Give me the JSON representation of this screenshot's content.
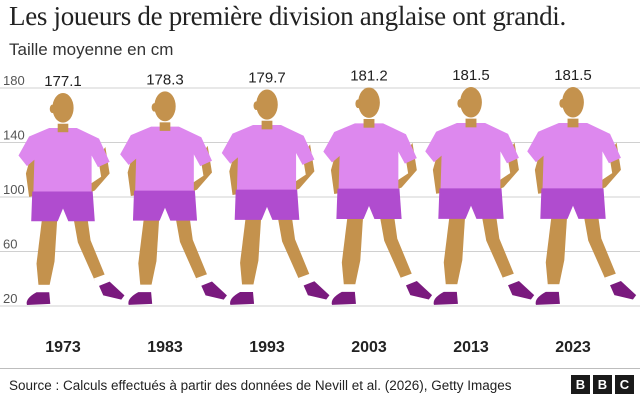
{
  "title": "Les joueurs de première division anglaise ont grandi.",
  "subtitle": "Taille moyenne en cm",
  "source": "Source : Calculs effectués à partir des données de Nevill et al. (2026), Getty Images",
  "logo": {
    "letters": [
      "B",
      "B",
      "C"
    ],
    "color": "#1a1a1a"
  },
  "colors": {
    "shirt": "#dd88ee",
    "shorts": "#b04ccf",
    "skin": "#c4924d",
    "boots": "#7a1a7e",
    "socks": "#ffffff",
    "grid": "#d0d0d0"
  },
  "chart_data": {
    "type": "bar",
    "categories": [
      "1973",
      "1983",
      "1993",
      "2003",
      "2013",
      "2023"
    ],
    "values": [
      177.1,
      178.3,
      179.7,
      181.2,
      181.5,
      181.5
    ],
    "value_labels": [
      "177.1",
      "178.3",
      "179.7",
      "181.2",
      "181.5",
      "181.5"
    ],
    "title": "Les joueurs de première division anglaise ont grandi.",
    "ylabel": "Taille moyenne en cm",
    "yticks": [
      20,
      60,
      100,
      140,
      180
    ],
    "ylim": [
      0,
      180
    ],
    "grid": true,
    "mark": "player-icon"
  }
}
